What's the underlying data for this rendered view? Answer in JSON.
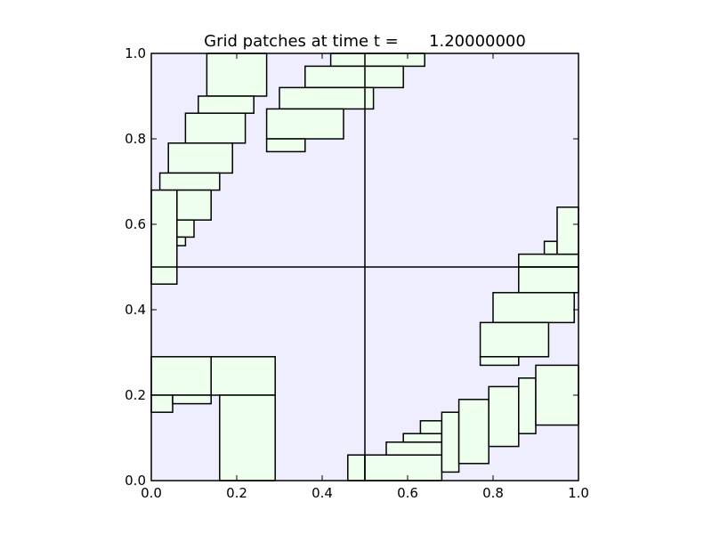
{
  "chart_data": {
    "type": "rectangles",
    "title": "Grid patches at time t =      1.20000000",
    "xlabel": "",
    "ylabel": "",
    "xlim": [
      0.0,
      1.0
    ],
    "ylim": [
      0.0,
      1.0
    ],
    "xticks": [
      "0.0",
      "0.2",
      "0.4",
      "0.6",
      "0.8",
      "1.0"
    ],
    "yticks": [
      "0.0",
      "0.2",
      "0.4",
      "0.6",
      "0.8",
      "1.0"
    ],
    "colors": {
      "domain_background": "#eeeeff",
      "patch_fill": "#eeffee",
      "edge": "#000000"
    },
    "coarse_grid_lines": {
      "x": [
        0.5
      ],
      "y": [
        0.5
      ]
    },
    "patches": [
      {
        "x": [
          0.13,
          0.27
        ],
        "y": [
          0.9,
          1.0
        ]
      },
      {
        "x": [
          0.11,
          0.24
        ],
        "y": [
          0.86,
          0.9
        ]
      },
      {
        "x": [
          0.08,
          0.22
        ],
        "y": [
          0.79,
          0.86
        ]
      },
      {
        "x": [
          0.04,
          0.19
        ],
        "y": [
          0.72,
          0.79
        ]
      },
      {
        "x": [
          0.02,
          0.16
        ],
        "y": [
          0.68,
          0.72
        ]
      },
      {
        "x": [
          0.06,
          0.14
        ],
        "y": [
          0.61,
          0.68
        ]
      },
      {
        "x": [
          0.06,
          0.1
        ],
        "y": [
          0.57,
          0.61
        ]
      },
      {
        "x": [
          0.06,
          0.08
        ],
        "y": [
          0.55,
          0.57
        ]
      },
      {
        "x": [
          0.0,
          0.06
        ],
        "y": [
          0.46,
          0.68
        ]
      },
      {
        "x": [
          0.42,
          0.64
        ],
        "y": [
          0.97,
          1.0
        ]
      },
      {
        "x": [
          0.36,
          0.59
        ],
        "y": [
          0.92,
          0.97
        ]
      },
      {
        "x": [
          0.3,
          0.52
        ],
        "y": [
          0.87,
          0.92
        ]
      },
      {
        "x": [
          0.27,
          0.45
        ],
        "y": [
          0.8,
          0.87
        ]
      },
      {
        "x": [
          0.27,
          0.36
        ],
        "y": [
          0.77,
          0.8
        ]
      },
      {
        "x": [
          0.0,
          0.14
        ],
        "y": [
          0.2,
          0.29
        ]
      },
      {
        "x": [
          0.14,
          0.29
        ],
        "y": [
          0.2,
          0.29
        ]
      },
      {
        "x": [
          0.0,
          0.05
        ],
        "y": [
          0.16,
          0.2
        ]
      },
      {
        "x": [
          0.05,
          0.14
        ],
        "y": [
          0.18,
          0.2
        ]
      },
      {
        "x": [
          0.16,
          0.29
        ],
        "y": [
          0.0,
          0.2
        ]
      },
      {
        "x": [
          0.86,
          1.0
        ],
        "y": [
          0.5,
          0.53
        ]
      },
      {
        "x": [
          0.86,
          1.0
        ],
        "y": [
          0.44,
          0.5
        ]
      },
      {
        "x": [
          0.8,
          0.99
        ],
        "y": [
          0.37,
          0.44
        ]
      },
      {
        "x": [
          0.77,
          0.93
        ],
        "y": [
          0.29,
          0.37
        ]
      },
      {
        "x": [
          0.77,
          0.86
        ],
        "y": [
          0.27,
          0.29
        ]
      },
      {
        "x": [
          0.92,
          0.95
        ],
        "y": [
          0.53,
          0.56
        ]
      },
      {
        "x": [
          0.95,
          1.0
        ],
        "y": [
          0.53,
          0.64
        ]
      },
      {
        "x": [
          0.46,
          0.5
        ],
        "y": [
          0.0,
          0.06
        ]
      },
      {
        "x": [
          0.5,
          0.68
        ],
        "y": [
          0.0,
          0.06
        ]
      },
      {
        "x": [
          0.55,
          0.68
        ],
        "y": [
          0.06,
          0.09
        ]
      },
      {
        "x": [
          0.59,
          0.68
        ],
        "y": [
          0.09,
          0.11
        ]
      },
      {
        "x": [
          0.63,
          0.68
        ],
        "y": [
          0.11,
          0.14
        ]
      },
      {
        "x": [
          0.68,
          0.72
        ],
        "y": [
          0.02,
          0.16
        ]
      },
      {
        "x": [
          0.72,
          0.79
        ],
        "y": [
          0.04,
          0.19
        ]
      },
      {
        "x": [
          0.79,
          0.86
        ],
        "y": [
          0.08,
          0.22
        ]
      },
      {
        "x": [
          0.86,
          0.9
        ],
        "y": [
          0.11,
          0.24
        ]
      },
      {
        "x": [
          0.9,
          1.0
        ],
        "y": [
          0.13,
          0.27
        ]
      }
    ]
  }
}
